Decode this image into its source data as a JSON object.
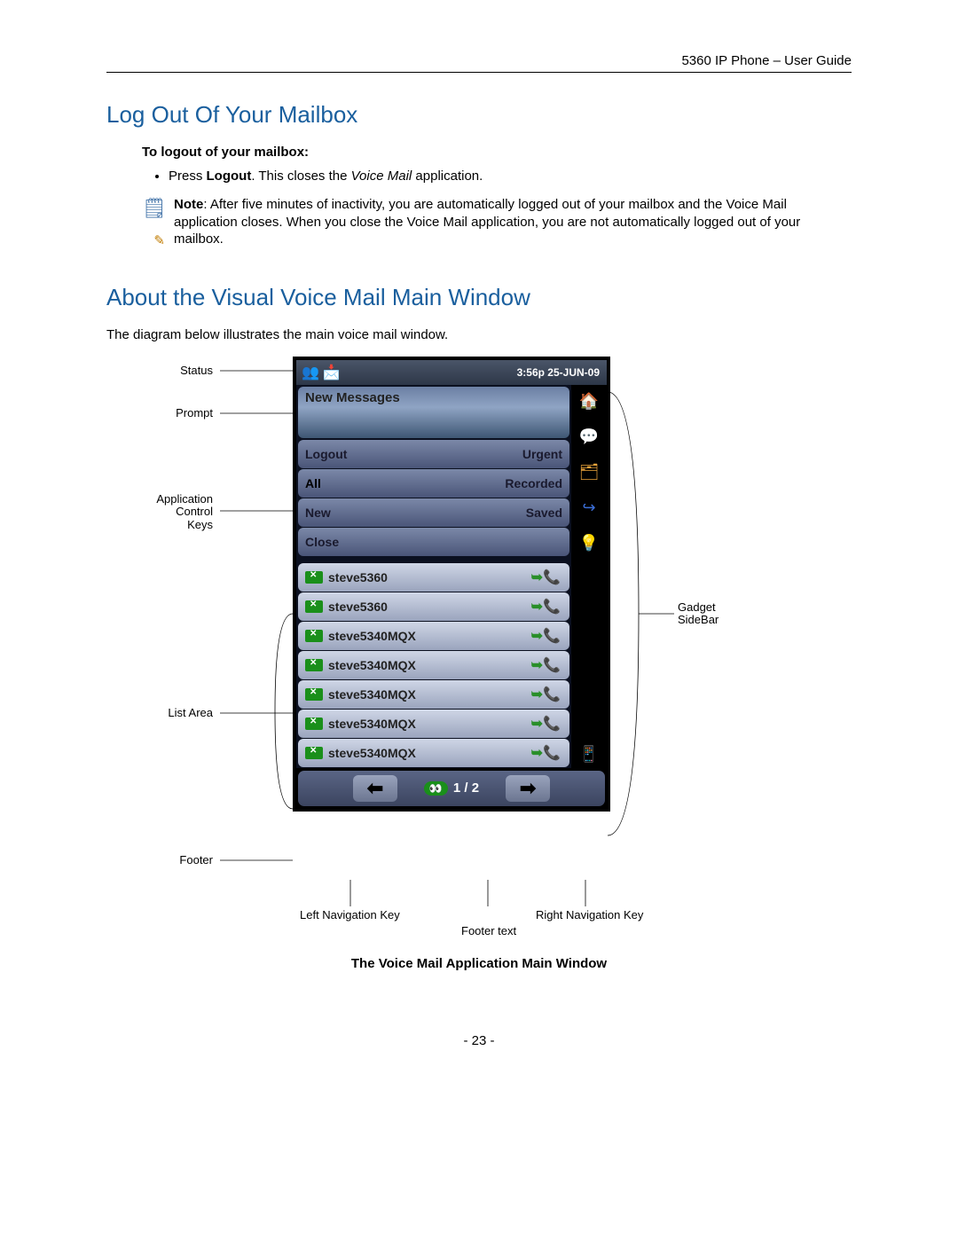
{
  "header": {
    "right": "5360 IP Phone – User Guide"
  },
  "section1": {
    "title": "Log Out Of Your Mailbox",
    "sub": "To logout of your mailbox:",
    "bullet_prefix": "Press ",
    "bullet_bold": "Logout",
    "bullet_mid": ". This closes the ",
    "bullet_italic": "Voice Mail",
    "bullet_suffix": " application.",
    "note_label": "Note",
    "note_text": ": After five minutes of inactivity, you are automatically logged out of your mailbox and the Voice Mail application closes. When you close the Voice Mail application, you are not automatically logged out of your mailbox."
  },
  "section2": {
    "title": "About the Visual Voice Mail Main Window",
    "intro": "The diagram below illustrates the main voice mail window.",
    "caption": "The Voice Mail Application Main Window",
    "page": "- 23 -"
  },
  "annotations": {
    "status": "Status",
    "prompt": "Prompt",
    "app_keys": "Application\nControl\nKeys",
    "list": "List Area",
    "footer": "Footer",
    "gadget": "Gadget\nSideBar",
    "left_nav": "Left Navigation Key",
    "footer_text": "Footer text",
    "right_nav": "Right Navigation Key"
  },
  "phone": {
    "status_time": "3:56p 25-JUN-09",
    "prompt": "New Messages",
    "keys": [
      {
        "l": "Logout",
        "r": "Urgent"
      },
      {
        "l": "All",
        "r": "Recorded"
      },
      {
        "l": "New",
        "r": "Saved"
      },
      {
        "l": "Close",
        "r": ""
      }
    ],
    "list": [
      "steve5360",
      "steve5360",
      "steve5340MQX",
      "steve5340MQX",
      "steve5340MQX",
      "steve5340MQX",
      "steve5340MQX"
    ],
    "footer_text": "1 / 2"
  },
  "colors": {
    "heading": "#1a5f9e",
    "status_grad_top": "#4a5568",
    "status_grad_bot": "#2d3748",
    "key_grad_top": "#7b88a8",
    "key_grad_bot": "#4a5578",
    "list_grad_top": "#cfd6e6",
    "list_grad_bot": "#9aa4bd",
    "env_green": "#1a8f1a"
  }
}
